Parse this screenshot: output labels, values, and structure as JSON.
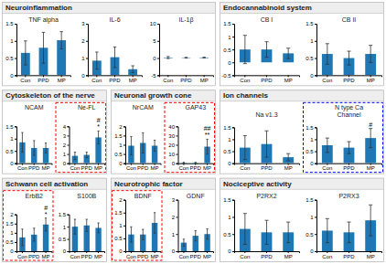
{
  "chart_data": [
    {
      "type": "bar",
      "title": "Neuroinflammation",
      "subtitle": "TNF alpha",
      "categories": [
        "Con",
        "PPD",
        "MP"
      ],
      "values": [
        0.65,
        0.8,
        1.02
      ],
      "errors": [
        0.35,
        0.45,
        0.25
      ],
      "ylim": [
        0,
        1.5
      ],
      "yticks": [
        0,
        0.5,
        1,
        1.5
      ]
    },
    {
      "type": "bar",
      "subtitle": "IL-6",
      "categories": [
        "Con",
        "PPD",
        "MP"
      ],
      "values": [
        0.85,
        1.05,
        0.35
      ],
      "errors": [
        0.5,
        0.6,
        0.2
      ],
      "ylim": [
        0,
        3
      ],
      "yticks": [
        0,
        1,
        2,
        3
      ]
    },
    {
      "type": "bar",
      "subtitle": "IL-1β",
      "categories": [
        "Con",
        "PPD",
        "MP"
      ],
      "values": [
        0.15,
        0.1,
        0.15
      ],
      "errors": [
        0.3,
        0.1,
        0.1
      ],
      "ylim": [
        -5,
        10
      ],
      "yticks": [
        -5,
        0,
        5,
        10
      ]
    },
    {
      "type": "bar",
      "title": "Endocannabinoid system",
      "subtitle": "CB I",
      "categories": [
        "Con",
        "PPD",
        "MP"
      ],
      "values": [
        0.5,
        0.5,
        0.35
      ],
      "errors": [
        0.55,
        0.3,
        0.2
      ],
      "ylim": [
        -0.5,
        1.5
      ],
      "yticks": [
        -0.5,
        0,
        0.5,
        1,
        1.5
      ]
    },
    {
      "type": "bar",
      "subtitle": "CB II",
      "categories": [
        "Con",
        "PPD",
        "MP"
      ],
      "values": [
        0.62,
        0.5,
        0.62
      ],
      "errors": [
        0.3,
        0.2,
        0.25
      ],
      "ylim": [
        0,
        1.5
      ],
      "yticks": [
        0,
        0.5,
        1,
        1.5
      ]
    },
    {
      "type": "bar",
      "title": "Cytoskeleton of the nerve",
      "subtitle": "NCAM",
      "categories": [
        "Con",
        "PPD",
        "MP"
      ],
      "values": [
        0.85,
        0.62,
        0.62
      ],
      "errors": [
        0.4,
        0.3,
        0.2
      ],
      "ylim": [
        0,
        1.5
      ],
      "yticks": [
        0,
        0.5,
        1,
        1.5
      ]
    },
    {
      "type": "bar",
      "subtitle": "Ne-FL",
      "categories": [
        "Con",
        "PPD",
        "MP"
      ],
      "values": [
        0.8,
        0.9,
        2.8
      ],
      "errors": [
        0.4,
        0.3,
        0.7
      ],
      "ylim": [
        0,
        4
      ],
      "yticks": [
        0,
        1,
        2,
        3,
        4
      ],
      "color": "red",
      "annotation": "#\n*"
    },
    {
      "type": "bar",
      "title": "Neuronal growth cone",
      "subtitle": "NrCAM",
      "categories": [
        "Con",
        "PPD",
        "MP"
      ],
      "values": [
        0.95,
        1.1,
        0.95
      ],
      "errors": [
        0.5,
        0.55,
        0.3
      ],
      "ylim": [
        0,
        2
      ],
      "yticks": [
        0,
        0.5,
        1,
        1.5,
        2
      ]
    },
    {
      "type": "bar",
      "subtitle": "GAP43",
      "categories": [
        "Con",
        "PPD",
        "MP"
      ],
      "values": [
        0.5,
        0.5,
        18.0
      ],
      "errors": [
        0.5,
        0.5,
        8.0
      ],
      "ylim": [
        0,
        40
      ],
      "yticks": [
        0,
        10,
        20,
        30,
        40
      ],
      "color": "red",
      "annotation": "##\n**"
    },
    {
      "type": "bar",
      "title": "Ion channels",
      "subtitle": "Na v1.3",
      "categories": [
        "Con",
        "PPD",
        "MP"
      ],
      "values": [
        0.65,
        0.8,
        0.25
      ],
      "errors": [
        0.5,
        0.55,
        0.15
      ],
      "ylim": [
        0,
        1.5
      ],
      "yticks": [
        0,
        0.5,
        1,
        1.5
      ]
    },
    {
      "type": "bar",
      "subtitle": "N type Ca\nChannel",
      "categories": [
        "Con",
        "PPD",
        "MP"
      ],
      "values": [
        0.75,
        0.65,
        1.05
      ],
      "errors": [
        0.3,
        0.25,
        0.4
      ],
      "ylim": [
        0,
        1.5
      ],
      "yticks": [
        0,
        0.5,
        1,
        1.5
      ],
      "color": "blue",
      "annotation": "#"
    },
    {
      "type": "bar",
      "title": "Schwann cell activation",
      "subtitle": "ErbB2",
      "categories": [
        "Con",
        "PPD",
        "MP"
      ],
      "values": [
        0.75,
        0.9,
        1.45
      ],
      "errors": [
        0.45,
        0.35,
        0.35
      ],
      "ylim": [
        0,
        2
      ],
      "yticks": [
        0,
        0.5,
        1,
        1.5,
        2
      ],
      "color": "red",
      "annotation": "#\n*"
    },
    {
      "type": "bar",
      "subtitle": "S100B",
      "categories": [
        "Con",
        "PPD",
        "MP"
      ],
      "values": [
        1.0,
        1.05,
        0.95
      ],
      "errors": [
        0.3,
        0.25,
        0.2
      ],
      "ylim": [
        0,
        1.5
      ],
      "yticks": [
        0,
        0.5,
        1,
        1.5
      ]
    },
    {
      "type": "bar",
      "title": "Neurotrophic factor",
      "subtitle": "BDNF",
      "categories": [
        "Con",
        "PPD",
        "MP"
      ],
      "values": [
        0.65,
        0.65,
        1.1
      ],
      "errors": [
        0.3,
        0.2,
        0.4
      ],
      "ylim": [
        0,
        2
      ],
      "yticks": [
        0,
        0.5,
        1,
        1.5,
        2
      ],
      "color": "red"
    },
    {
      "type": "bar",
      "subtitle": "GDNF",
      "categories": [
        "Con",
        "PPD",
        "MP"
      ],
      "values": [
        0.5,
        0.9,
        1.0
      ],
      "errors": [
        0.2,
        0.3,
        0.3
      ],
      "ylim": [
        0,
        3
      ],
      "yticks": [
        0,
        1,
        2,
        3
      ]
    },
    {
      "type": "bar",
      "title": "Nociceptive activity",
      "subtitle": "P2RX2",
      "categories": [
        "Con",
        "PPD",
        "MP"
      ],
      "values": [
        0.65,
        0.55,
        0.55
      ],
      "errors": [
        0.45,
        0.35,
        0.3
      ],
      "ylim": [
        0,
        1.5
      ],
      "yticks": [
        0,
        0.5,
        1,
        1.5
      ]
    },
    {
      "type": "bar",
      "subtitle": "P2RX3",
      "categories": [
        "Con",
        "PPD",
        "MP"
      ],
      "values": [
        0.6,
        0.55,
        0.9
      ],
      "errors": [
        0.35,
        0.3,
        0.45
      ],
      "ylim": [
        0,
        1.5
      ],
      "yticks": [
        0,
        0.5,
        1,
        1.5
      ]
    }
  ]
}
